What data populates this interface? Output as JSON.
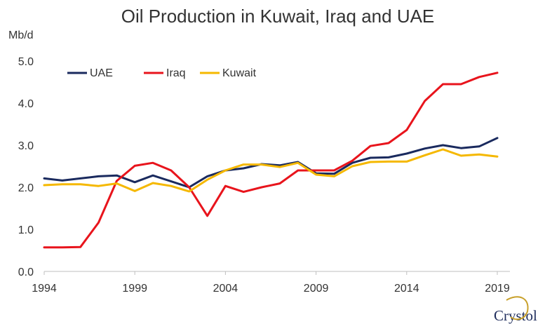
{
  "chart_data": {
    "type": "line",
    "title": "Oil Production in Kuwait, Iraq and UAE",
    "ylabel": "Mb/d",
    "xlabel": "",
    "xlim": [
      1994,
      2019
    ],
    "ylim": [
      0,
      5
    ],
    "x_ticks": [
      "1994",
      "1999",
      "2004",
      "2009",
      "2014",
      "2019"
    ],
    "y_ticks": [
      "0.0",
      "1.0",
      "2.0",
      "3.0",
      "4.0",
      "5.0"
    ],
    "grid": false,
    "legend_position": "top-left",
    "x": [
      1994,
      1995,
      1996,
      1997,
      1998,
      1999,
      2000,
      2001,
      2002,
      2003,
      2004,
      2005,
      2006,
      2007,
      2008,
      2009,
      2010,
      2011,
      2012,
      2013,
      2014,
      2015,
      2016,
      2017,
      2018,
      2019
    ],
    "series": [
      {
        "name": "UAE",
        "color": "#1a2a5e",
        "values": [
          2.21,
          2.16,
          2.21,
          2.26,
          2.28,
          2.12,
          2.28,
          2.14,
          2.0,
          2.26,
          2.4,
          2.45,
          2.55,
          2.52,
          2.6,
          2.33,
          2.32,
          2.58,
          2.7,
          2.71,
          2.8,
          2.92,
          3.0,
          2.93,
          2.97,
          3.17
        ]
      },
      {
        "name": "Iraq",
        "color": "#e8141c",
        "values": [
          0.57,
          0.57,
          0.58,
          1.16,
          2.15,
          2.51,
          2.58,
          2.4,
          2.0,
          1.32,
          2.03,
          1.89,
          2.0,
          2.09,
          2.4,
          2.4,
          2.4,
          2.63,
          2.98,
          3.05,
          3.36,
          4.05,
          4.45,
          4.45,
          4.62,
          4.72
        ]
      },
      {
        "name": "Kuwait",
        "color": "#f5b800",
        "values": [
          2.05,
          2.07,
          2.07,
          2.03,
          2.09,
          1.91,
          2.1,
          2.03,
          1.9,
          2.18,
          2.4,
          2.54,
          2.54,
          2.48,
          2.58,
          2.3,
          2.26,
          2.5,
          2.6,
          2.61,
          2.61,
          2.76,
          2.9,
          2.75,
          2.78,
          2.73
        ]
      }
    ]
  },
  "logo": {
    "text": "Crystol"
  }
}
